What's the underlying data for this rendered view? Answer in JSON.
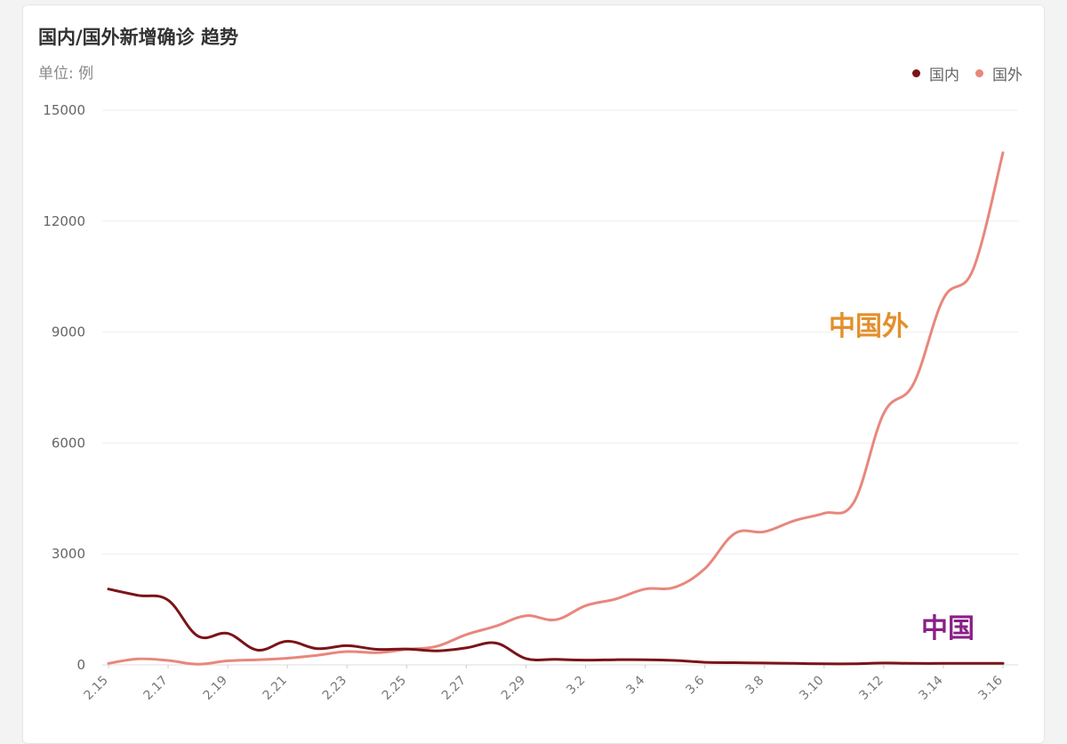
{
  "title": "国内/国外新增确诊 趋势",
  "unit": "单位: 例",
  "colors": {
    "domestic": "#7b1418",
    "foreign": "#e8877c",
    "annot_foreign": "#e48f2c",
    "annot_domestic": "#8a1f86"
  },
  "annotations": {
    "foreign": "中国外",
    "domestic": "中国"
  },
  "chart_data": {
    "type": "line",
    "title": "国内/国外新增确诊 趋势",
    "ylabel": "单位: 例",
    "ylim": [
      0,
      15000
    ],
    "yticks": [
      0,
      3000,
      6000,
      9000,
      12000,
      15000
    ],
    "x": [
      "2.15",
      "2.16",
      "2.17",
      "2.18",
      "2.19",
      "2.20",
      "2.21",
      "2.22",
      "2.23",
      "2.24",
      "2.25",
      "2.26",
      "2.27",
      "2.28",
      "2.29",
      "3.1",
      "3.2",
      "3.3",
      "3.4",
      "3.5",
      "3.6",
      "3.7",
      "3.8",
      "3.9",
      "3.10",
      "3.11",
      "3.12",
      "3.13",
      "3.14",
      "3.15",
      "3.16"
    ],
    "xticks_shown": [
      "2.15",
      "2.17",
      "2.19",
      "2.21",
      "2.23",
      "2.25",
      "2.27",
      "2.29",
      "3.2",
      "3.4",
      "3.6",
      "3.8",
      "3.10",
      "3.12",
      "3.14",
      "3.16"
    ],
    "legend_position": "top-right",
    "grid": true,
    "series": [
      {
        "name": "国内",
        "values": [
          2050,
          1880,
          1750,
          780,
          850,
          400,
          640,
          440,
          520,
          420,
          430,
          380,
          460,
          590,
          170,
          150,
          130,
          140,
          140,
          120,
          70,
          60,
          50,
          40,
          30,
          30,
          50,
          40,
          40,
          40,
          40
        ]
      },
      {
        "name": "国外",
        "values": [
          40,
          160,
          120,
          20,
          110,
          140,
          180,
          260,
          360,
          330,
          420,
          500,
          820,
          1050,
          1330,
          1220,
          1600,
          1780,
          2050,
          2100,
          2600,
          3550,
          3600,
          3900,
          4100,
          4400,
          6800,
          7600,
          9900,
          10700,
          13850
        ]
      }
    ]
  }
}
